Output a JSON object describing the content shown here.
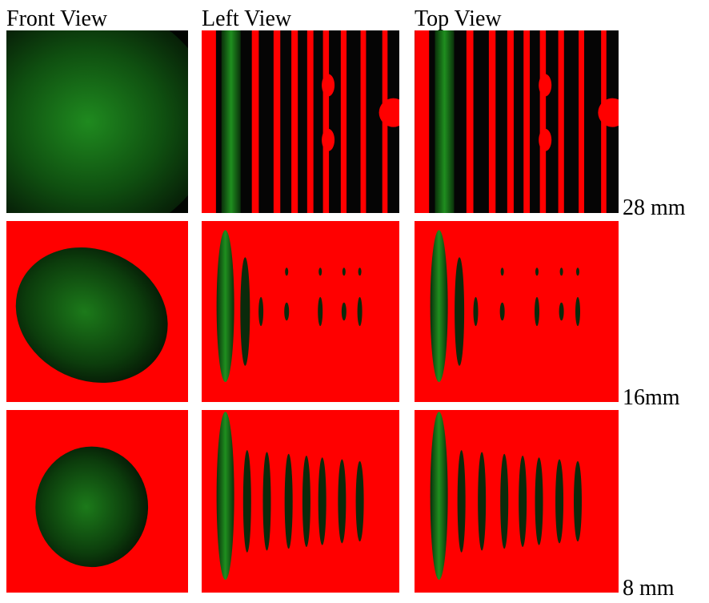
{
  "columns": [
    "Front View",
    "Left View",
    "Top View"
  ],
  "rows": [
    "28 mm",
    "16mm",
    "8 mm"
  ]
}
